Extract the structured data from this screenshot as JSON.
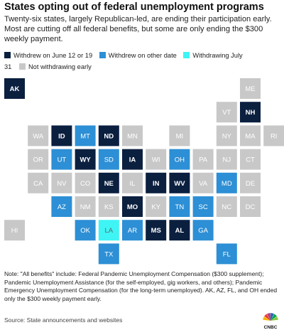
{
  "header": {
    "title": "States opting out of federal unemployment programs",
    "subtitle": "Twenty-six states, largely Republican-led, are ending their participation early. Most are cutting off all federal benefits, but some are only ending the $300 weekly payment."
  },
  "legend": {
    "items": [
      {
        "key": "june",
        "label": "Withdrew on June 12 or 19",
        "color": "#0b1f3f"
      },
      {
        "key": "other",
        "label": "Withdrew on other date",
        "color": "#2d8fd5"
      },
      {
        "key": "july",
        "label": "Withdrawing July",
        "label_cont": "31",
        "color": "#3ff4f4"
      },
      {
        "key": "not",
        "label": "Not withdrawing early",
        "color": "#c8c8c8"
      }
    ]
  },
  "chart_data": {
    "type": "tile-grid-map",
    "categories": [
      "june",
      "other",
      "july",
      "not"
    ],
    "tiles": [
      {
        "state": "AK",
        "col": 0,
        "row": 0,
        "status": "june"
      },
      {
        "state": "ME",
        "col": 10,
        "row": 0,
        "status": "not"
      },
      {
        "state": "VT",
        "col": 9,
        "row": 1,
        "status": "not"
      },
      {
        "state": "NH",
        "col": 10,
        "row": 1,
        "status": "june"
      },
      {
        "state": "WA",
        "col": 1,
        "row": 2,
        "status": "not"
      },
      {
        "state": "ID",
        "col": 2,
        "row": 2,
        "status": "june"
      },
      {
        "state": "MT",
        "col": 3,
        "row": 2,
        "status": "other"
      },
      {
        "state": "ND",
        "col": 4,
        "row": 2,
        "status": "june"
      },
      {
        "state": "MN",
        "col": 5,
        "row": 2,
        "status": "not"
      },
      {
        "state": "MI",
        "col": 7,
        "row": 2,
        "status": "not"
      },
      {
        "state": "NY",
        "col": 9,
        "row": 2,
        "status": "not"
      },
      {
        "state": "MA",
        "col": 10,
        "row": 2,
        "status": "not"
      },
      {
        "state": "RI",
        "col": 11,
        "row": 2,
        "status": "not"
      },
      {
        "state": "OR",
        "col": 1,
        "row": 3,
        "status": "not"
      },
      {
        "state": "UT",
        "col": 2,
        "row": 3,
        "status": "other"
      },
      {
        "state": "WY",
        "col": 3,
        "row": 3,
        "status": "june"
      },
      {
        "state": "SD",
        "col": 4,
        "row": 3,
        "status": "other"
      },
      {
        "state": "IA",
        "col": 5,
        "row": 3,
        "status": "june"
      },
      {
        "state": "WI",
        "col": 6,
        "row": 3,
        "status": "not"
      },
      {
        "state": "OH",
        "col": 7,
        "row": 3,
        "status": "other"
      },
      {
        "state": "PA",
        "col": 8,
        "row": 3,
        "status": "not"
      },
      {
        "state": "NJ",
        "col": 9,
        "row": 3,
        "status": "not"
      },
      {
        "state": "CT",
        "col": 10,
        "row": 3,
        "status": "not"
      },
      {
        "state": "CA",
        "col": 1,
        "row": 4,
        "status": "not"
      },
      {
        "state": "NV",
        "col": 2,
        "row": 4,
        "status": "not"
      },
      {
        "state": "CO",
        "col": 3,
        "row": 4,
        "status": "not"
      },
      {
        "state": "NE",
        "col": 4,
        "row": 4,
        "status": "june"
      },
      {
        "state": "IL",
        "col": 5,
        "row": 4,
        "status": "not"
      },
      {
        "state": "IN",
        "col": 6,
        "row": 4,
        "status": "june"
      },
      {
        "state": "WV",
        "col": 7,
        "row": 4,
        "status": "june"
      },
      {
        "state": "VA",
        "col": 8,
        "row": 4,
        "status": "not"
      },
      {
        "state": "MD",
        "col": 9,
        "row": 4,
        "status": "other"
      },
      {
        "state": "DE",
        "col": 10,
        "row": 4,
        "status": "not"
      },
      {
        "state": "AZ",
        "col": 2,
        "row": 5,
        "status": "other"
      },
      {
        "state": "NM",
        "col": 3,
        "row": 5,
        "status": "not"
      },
      {
        "state": "KS",
        "col": 4,
        "row": 5,
        "status": "not"
      },
      {
        "state": "MO",
        "col": 5,
        "row": 5,
        "status": "june"
      },
      {
        "state": "KY",
        "col": 6,
        "row": 5,
        "status": "not"
      },
      {
        "state": "TN",
        "col": 7,
        "row": 5,
        "status": "other"
      },
      {
        "state": "SC",
        "col": 8,
        "row": 5,
        "status": "other"
      },
      {
        "state": "NC",
        "col": 9,
        "row": 5,
        "status": "not"
      },
      {
        "state": "DC",
        "col": 10,
        "row": 5,
        "status": "not"
      },
      {
        "state": "HI",
        "col": 0,
        "row": 6,
        "status": "not"
      },
      {
        "state": "OK",
        "col": 3,
        "row": 6,
        "status": "other"
      },
      {
        "state": "LA",
        "col": 4,
        "row": 6,
        "status": "july"
      },
      {
        "state": "AR",
        "col": 5,
        "row": 6,
        "status": "other"
      },
      {
        "state": "MS",
        "col": 6,
        "row": 6,
        "status": "june"
      },
      {
        "state": "AL",
        "col": 7,
        "row": 6,
        "status": "june"
      },
      {
        "state": "GA",
        "col": 8,
        "row": 6,
        "status": "other"
      },
      {
        "state": "TX",
        "col": 4,
        "row": 7,
        "status": "other"
      },
      {
        "state": "FL",
        "col": 9,
        "row": 7,
        "status": "other"
      }
    ]
  },
  "footer": {
    "note": "Note: \"All benefits\" include: Federal Pandemic Unemployment Compensation ($300 supplement); Pandemic Unemployment Assistance (for the self-employed, gig workers, and others); Pandemic Emergency Unemployment Compensation (for the long-term unemployed). AK, AZ, FL, and OH ended only the $300 weekly payment early.",
    "source": "Source: State announcements and websites",
    "logo_text": "CNBC",
    "logo_colors": [
      "#f9b300",
      "#ef3e31",
      "#b03a7e",
      "#1f62b0",
      "#00a44e",
      "#8cc63f"
    ]
  }
}
